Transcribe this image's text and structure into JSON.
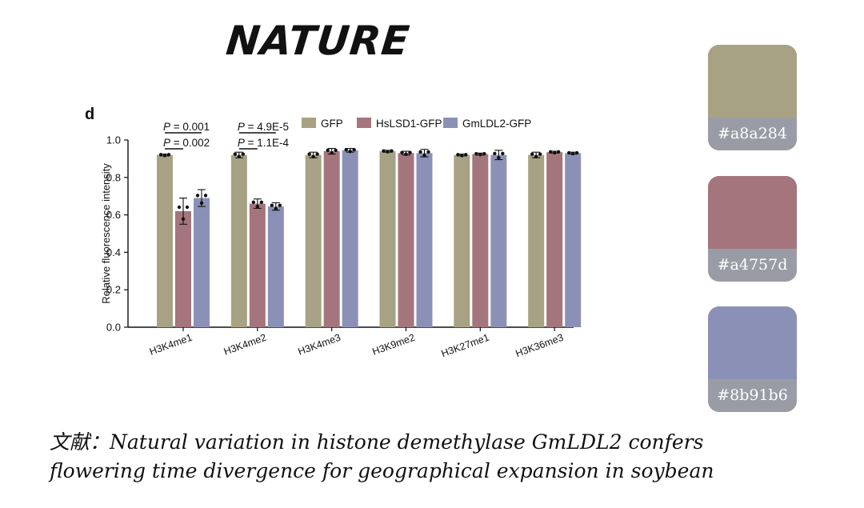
{
  "header": {
    "logo_text": "NATURE"
  },
  "chart_data": {
    "type": "bar",
    "panel_label": "d",
    "title": "",
    "xlabel": "",
    "ylabel": "Relative fluorescence intensity",
    "ylim": [
      0,
      1.0
    ],
    "yticks": [
      "0.0",
      "0.2",
      "0.4",
      "0.6",
      "0.8",
      "1.0"
    ],
    "categories": [
      "H3K4me1",
      "H3K4me2",
      "H3K4me3",
      "H3K9me2",
      "H3K27me1",
      "H3K36me3"
    ],
    "series": [
      {
        "name": "GFP",
        "color": "#a8a284",
        "values": [
          0.92,
          0.92,
          0.92,
          0.94,
          0.92,
          0.92
        ],
        "errors": [
          0.005,
          0.015,
          0.015,
          0.005,
          0.005,
          0.015
        ]
      },
      {
        "name": "HsLSD1-GFP",
        "color": "#a4757d",
        "values": [
          0.62,
          0.66,
          0.94,
          0.93,
          0.925,
          0.935
        ],
        "errors": [
          0.07,
          0.025,
          0.015,
          0.01,
          0.005,
          0.005
        ]
      },
      {
        "name": "GmLDL2-GFP",
        "color": "#8b91b6",
        "values": [
          0.69,
          0.645,
          0.945,
          0.93,
          0.92,
          0.93
        ],
        "errors": [
          0.045,
          0.02,
          0.01,
          0.02,
          0.025,
          0.005
        ]
      }
    ],
    "legend_position": "top",
    "annotations": [
      {
        "text": "P = 0.001",
        "category": 0,
        "from": "GFP",
        "to": "GmLDL2-GFP"
      },
      {
        "text": "P = 0.002",
        "category": 0,
        "from": "GFP",
        "to": "HsLSD1-GFP"
      },
      {
        "text": "P = 4.9E-5",
        "category": 1,
        "from": "GFP",
        "to": "GmLDL2-GFP"
      },
      {
        "text": "P = 1.1E-4",
        "category": 1,
        "from": "GFP",
        "to": "HsLSD1-GFP"
      }
    ]
  },
  "palette": [
    {
      "hex": "#a8a284",
      "label": "#a8a284"
    },
    {
      "hex": "#a4757d",
      "label": "#a4757d"
    },
    {
      "hex": "#8b91b6",
      "label": "#8b91b6"
    }
  ],
  "citation": {
    "line1": "文献：Natural variation in histone demethylase GmLDL2 confers",
    "line2": "flowering time divergence for geographical expansion in soybean"
  }
}
